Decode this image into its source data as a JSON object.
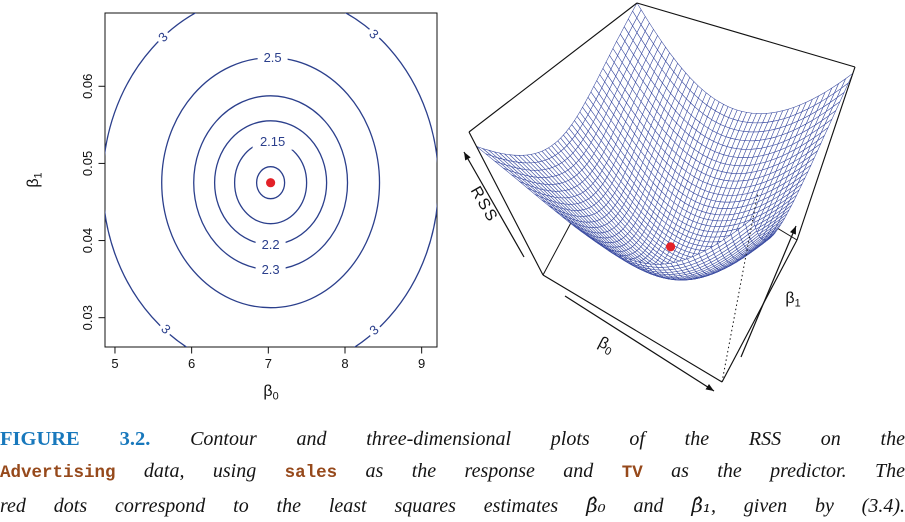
{
  "figure": {
    "caption": {
      "lines": [
        [
          {
            "style": "tag",
            "text": "FIGURE 3.2."
          },
          {
            "style": "body",
            "text": " Contour and three-dimensional plots of the RSS on the"
          }
        ],
        [
          {
            "style": "code",
            "text": "Advertising"
          },
          {
            "style": "body",
            "text": " data, using "
          },
          {
            "style": "code",
            "text": "sales"
          },
          {
            "style": "body",
            "text": " as the response and "
          },
          {
            "style": "code",
            "text": "TV"
          },
          {
            "style": "body",
            "text": " as the predictor. The"
          }
        ],
        [
          {
            "style": "body",
            "text": "red dots correspond to the least squares estimates "
          },
          {
            "style": "math",
            "text": "β̂₀"
          },
          {
            "style": "body",
            "text": " and "
          },
          {
            "style": "math",
            "text": "β̂₁"
          },
          {
            "style": "body",
            "text": ", given by (3.4)."
          }
        ]
      ]
    },
    "colors": {
      "contour_line": "#2b3f8c",
      "surface_line": "#3b4ca1",
      "marker_red": "#e32128",
      "figure_tag_blue": "#1878bc",
      "code_brown": "#96491b",
      "axis_black": "#111111"
    }
  },
  "chart_data": [
    {
      "type": "contour",
      "xlabel": "β₀",
      "ylabel": "β₁",
      "x_ticks": [
        5,
        6,
        7,
        8,
        9
      ],
      "y_ticks": [
        "0.03",
        "0.04",
        "0.05",
        "0.06"
      ],
      "xlim": [
        4.87,
        9.2
      ],
      "ylim": [
        0.0262,
        0.0695
      ],
      "minimum": {
        "beta0": 7.03,
        "beta1": 0.0475
      },
      "marker": "red-dot",
      "contours": [
        {
          "level": null,
          "rx": 0.182,
          "ry": 0.00207,
          "label_pos": null
        },
        {
          "level": "2.15",
          "rx": 0.469,
          "ry": 0.00531,
          "label_pos": "top"
        },
        {
          "level": "2.2",
          "rx": 0.73,
          "ry": 0.00803,
          "label_pos": "bottom"
        },
        {
          "level": "2.3",
          "rx": 1.003,
          "ry": 0.01127,
          "label_pos": "bottom"
        },
        {
          "level": "2.5",
          "rx": 1.42,
          "ry": 0.0162,
          "label_pos": "top"
        },
        {
          "level": "3",
          "rx": 2.19,
          "ry": 0.02462,
          "label_pos": "corners"
        }
      ]
    },
    {
      "type": "surface",
      "xlabel": "β₀",
      "ylabel": "β₁",
      "zlabel": "RSS",
      "description": "Bowl-shaped RSS surface over (β₀, β₁); red dot marks the least squares minimum",
      "minimum": {
        "beta0": 7.03,
        "beta1": 0.0475
      },
      "grid": 44,
      "marker": "red-dot"
    }
  ]
}
